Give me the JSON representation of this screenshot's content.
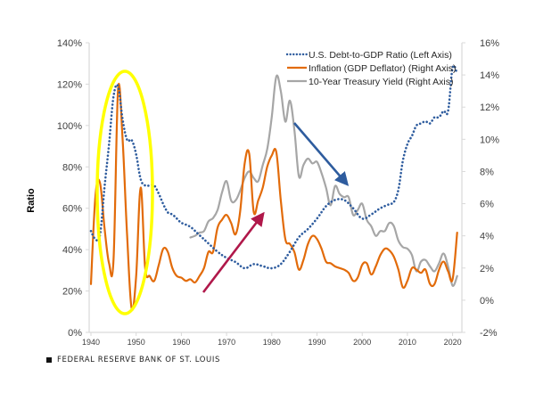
{
  "chart_data": {
    "type": "line",
    "title": "",
    "xlabel": "",
    "ylabel": "Ratio",
    "x_ticks": [
      "1940",
      "1950",
      "1960",
      "1970",
      "1980",
      "1990",
      "2000",
      "2010",
      "2020"
    ],
    "x_range": [
      1940,
      2022
    ],
    "left_axis": {
      "ticks": [
        "0%",
        "20%",
        "40%",
        "60%",
        "80%",
        "100%",
        "120%",
        "140%"
      ],
      "range": [
        0,
        140
      ]
    },
    "right_axis": {
      "ticks": [
        "-2%",
        "0%",
        "2%",
        "4%",
        "6%",
        "8%",
        "10%",
        "12%",
        "14%",
        "16%"
      ],
      "range": [
        -2,
        16
      ]
    },
    "legend_position": "top-right",
    "series": [
      {
        "name": "U.S. Debt-to-GDP Ratio (Left Axis)",
        "axis": "left",
        "style": "dotted",
        "color": "#2e5c9e",
        "x": [
          1940,
          1941,
          1942,
          1943,
          1944,
          1945,
          1946,
          1947,
          1948,
          1949,
          1950,
          1951,
          1952,
          1953,
          1954,
          1955,
          1956,
          1957,
          1958,
          1959,
          1960,
          1962,
          1964,
          1966,
          1968,
          1970,
          1972,
          1974,
          1976,
          1978,
          1980,
          1982,
          1984,
          1986,
          1988,
          1990,
          1992,
          1994,
          1996,
          1998,
          2000,
          2002,
          2004,
          2006,
          2007,
          2008,
          2009,
          2010,
          2011,
          2012,
          2013,
          2014,
          2015,
          2016,
          2017,
          2018,
          2019,
          2020,
          2021
        ],
        "values": [
          49,
          45,
          47,
          70,
          91,
          114,
          119,
          103,
          93,
          93,
          86,
          74,
          71,
          71,
          71,
          67,
          62,
          58,
          57,
          55,
          53,
          51,
          47,
          43,
          39,
          36,
          34,
          31,
          33,
          32,
          31,
          33,
          39,
          46,
          50,
          55,
          61,
          64,
          64,
          60,
          55,
          57,
          60,
          62,
          63,
          69,
          83,
          91,
          95,
          100,
          101,
          102,
          101,
          104,
          104,
          107,
          107,
          128,
          125
        ]
      },
      {
        "name": "Inflation (GDP Deflator) (Right Axis)",
        "axis": "right",
        "style": "solid",
        "color": "#e26b0a",
        "x": [
          1940,
          1941,
          1942,
          1943,
          1944,
          1945,
          1946,
          1947,
          1948,
          1949,
          1950,
          1951,
          1952,
          1953,
          1954,
          1955,
          1956,
          1957,
          1958,
          1959,
          1960,
          1961,
          1962,
          1963,
          1964,
          1965,
          1966,
          1967,
          1968,
          1969,
          1970,
          1971,
          1972,
          1973,
          1974,
          1975,
          1976,
          1977,
          1978,
          1979,
          1980,
          1981,
          1982,
          1983,
          1984,
          1985,
          1986,
          1987,
          1988,
          1989,
          1990,
          1991,
          1992,
          1993,
          1994,
          1995,
          1996,
          1997,
          1998,
          1999,
          2000,
          2001,
          2002,
          2003,
          2004,
          2005,
          2006,
          2007,
          2008,
          2009,
          2010,
          2011,
          2012,
          2013,
          2014,
          2015,
          2016,
          2017,
          2018,
          2019,
          2020,
          2021
        ],
        "values": [
          1.0,
          6.5,
          7.3,
          4.5,
          2.3,
          2.5,
          13.1,
          10.0,
          4.0,
          -0.5,
          1.5,
          7.0,
          2.0,
          1.5,
          1.2,
          2.2,
          3.2,
          3.0,
          2.0,
          1.5,
          1.4,
          1.2,
          1.3,
          1.1,
          1.5,
          2.0,
          3.0,
          3.0,
          4.5,
          5.0,
          5.3,
          4.8,
          4.1,
          5.5,
          8.5,
          9.1,
          5.5,
          6.2,
          7.0,
          8.3,
          9.0,
          9.2,
          6.2,
          3.8,
          3.5,
          3.0,
          1.9,
          2.5,
          3.5,
          4.0,
          3.8,
          3.2,
          2.4,
          2.3,
          2.1,
          2.0,
          1.9,
          1.7,
          1.2,
          1.4,
          2.2,
          2.3,
          1.6,
          2.1,
          2.8,
          3.2,
          3.1,
          2.7,
          1.9,
          0.8,
          1.2,
          2.0,
          1.9,
          1.7,
          1.9,
          1.0,
          1.0,
          1.9,
          2.4,
          1.8,
          1.3,
          4.2
        ]
      },
      {
        "name": "10-Year Treasury Yield (Right Axis)",
        "axis": "right",
        "style": "solid",
        "color": "#a6a6a6",
        "x": [
          1962,
          1963,
          1964,
          1965,
          1966,
          1967,
          1968,
          1969,
          1970,
          1971,
          1972,
          1973,
          1974,
          1975,
          1976,
          1977,
          1978,
          1979,
          1980,
          1981,
          1982,
          1983,
          1984,
          1985,
          1986,
          1987,
          1988,
          1989,
          1990,
          1991,
          1992,
          1993,
          1994,
          1995,
          1996,
          1997,
          1998,
          1999,
          2000,
          2001,
          2002,
          2003,
          2004,
          2005,
          2006,
          2007,
          2008,
          2009,
          2010,
          2011,
          2012,
          2013,
          2014,
          2015,
          2016,
          2017,
          2018,
          2019,
          2020,
          2021
        ],
        "values": [
          3.9,
          4.0,
          4.2,
          4.3,
          4.9,
          5.1,
          5.6,
          6.7,
          7.4,
          6.2,
          6.2,
          6.8,
          7.6,
          8.0,
          7.6,
          7.4,
          8.4,
          9.4,
          11.4,
          13.9,
          13.0,
          11.1,
          12.4,
          10.6,
          7.7,
          8.4,
          8.8,
          8.5,
          8.6,
          7.9,
          7.0,
          5.9,
          7.1,
          6.6,
          6.4,
          6.4,
          5.3,
          5.6,
          6.0,
          5.0,
          4.6,
          4.0,
          4.3,
          4.3,
          4.8,
          4.6,
          3.7,
          3.3,
          3.2,
          2.8,
          1.8,
          2.4,
          2.5,
          2.1,
          1.8,
          2.3,
          2.9,
          2.1,
          0.9,
          1.5
        ]
      }
    ],
    "annotations": [
      {
        "type": "ellipse",
        "color": "#ffff00",
        "description": "highlight around WWII period (~1942-1953)"
      },
      {
        "type": "arrow",
        "color": "#b0184a",
        "description": "upward arrow ~1965 to ~1979"
      },
      {
        "type": "arrow",
        "color": "#2e5c9e",
        "description": "downward arrow ~1985 to ~1997"
      }
    ]
  },
  "footer": {
    "source": "FEDERAL RESERVE BANK OF ST. LOUIS"
  }
}
